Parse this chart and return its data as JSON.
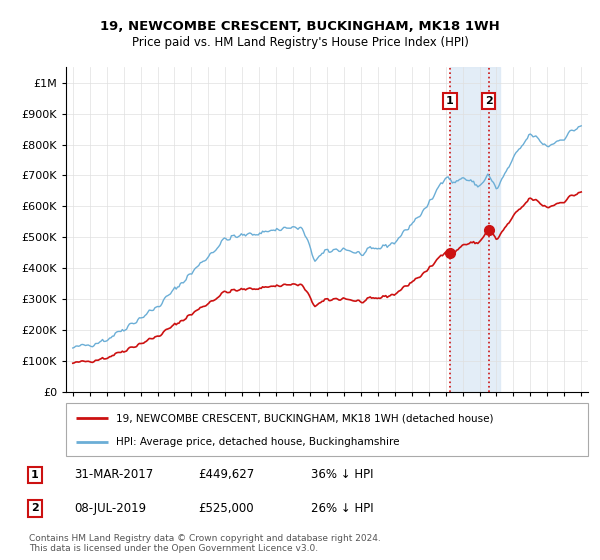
{
  "title": "19, NEWCOMBE CRESCENT, BUCKINGHAM, MK18 1WH",
  "subtitle": "Price paid vs. HM Land Registry's House Price Index (HPI)",
  "legend_line1": "19, NEWCOMBE CRESCENT, BUCKINGHAM, MK18 1WH (detached house)",
  "legend_line2": "HPI: Average price, detached house, Buckinghamshire",
  "annotation1_year": 2017.25,
  "annotation1_price": 449627,
  "annotation2_year": 2019.54,
  "annotation2_price": 525000,
  "footer": "Contains HM Land Registry data © Crown copyright and database right 2024.\nThis data is licensed under the Open Government Licence v3.0.",
  "hpi_color": "#6baed6",
  "price_color": "#cc1111",
  "annotation_box_color": "#cc1111",
  "shading_color": "#dce9f5",
  "ylim_max": 1050000,
  "yticks": [
    0,
    100000,
    200000,
    300000,
    400000,
    500000,
    600000,
    700000,
    800000,
    900000,
    1000000
  ],
  "start_year": 1995,
  "end_year": 2025
}
